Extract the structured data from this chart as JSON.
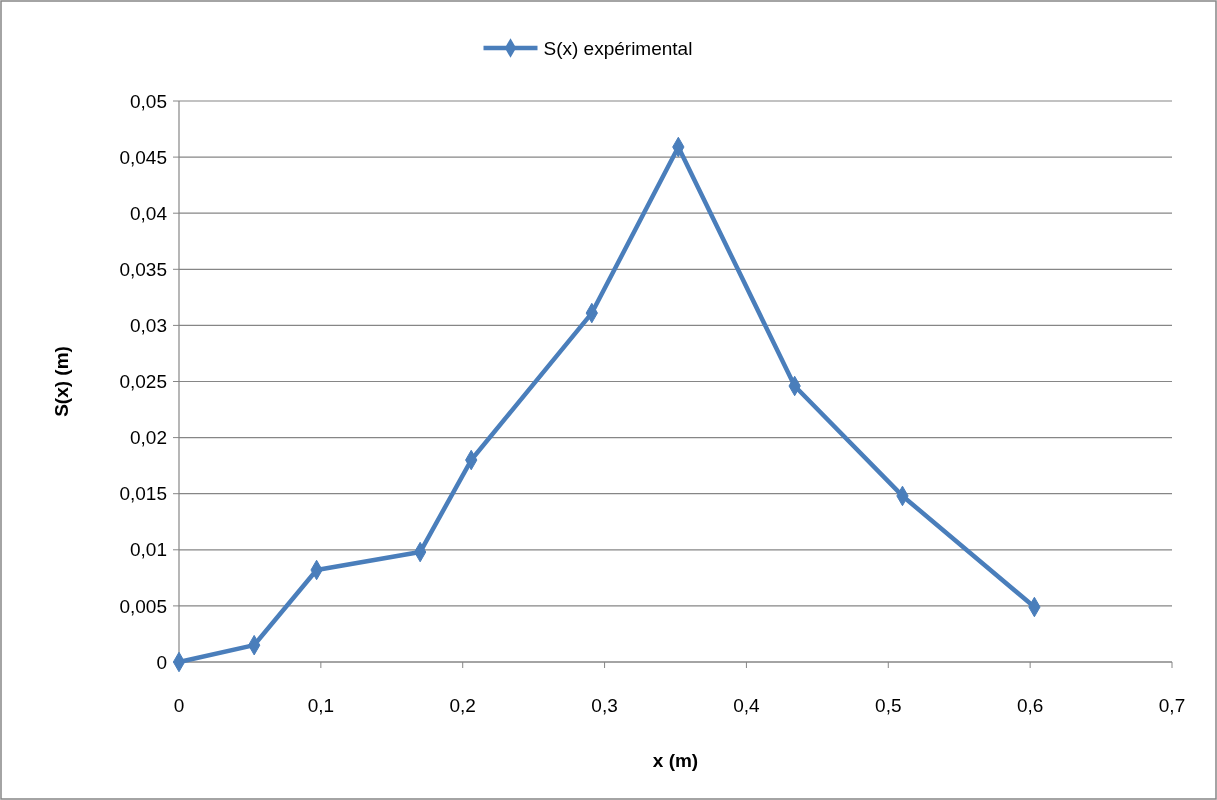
{
  "chart_data": {
    "type": "line",
    "xlabel": "x (m)",
    "ylabel": "S(x) (m)",
    "xlim": [
      0,
      0.7
    ],
    "ylim": [
      0,
      0.05
    ],
    "xticks": [
      0,
      {
        "value": 0.1,
        "label": "0,1"
      },
      {
        "value": 0.2,
        "label": "0,2"
      },
      {
        "value": 0.3,
        "label": "0,3"
      },
      {
        "value": 0.4,
        "label": "0,4"
      },
      {
        "value": 0.5,
        "label": "0,5"
      },
      {
        "value": 0.6,
        "label": "0,6"
      },
      {
        "value": 0.7,
        "label": "0,7"
      }
    ],
    "yticks": [
      0,
      {
        "value": 0.005,
        "label": "0,005"
      },
      {
        "value": 0.01,
        "label": "0,01"
      },
      {
        "value": 0.015,
        "label": "0,015"
      },
      {
        "value": 0.02,
        "label": "0,02"
      },
      {
        "value": 0.025,
        "label": "0,025"
      },
      {
        "value": 0.03,
        "label": "0,03"
      },
      {
        "value": 0.035,
        "label": "0,035"
      },
      {
        "value": 0.04,
        "label": "0,04"
      },
      {
        "value": 0.045,
        "label": "0,045"
      },
      {
        "value": 0.05,
        "label": "0,05"
      }
    ],
    "grid": "y",
    "legend": "top",
    "marker": "diamond",
    "line_style": "solid",
    "series": [
      {
        "name": "S(x) expérimental",
        "color": "#4a7ebb",
        "x": [
          0,
          0.053,
          0.097,
          0.17,
          0.206,
          0.291,
          0.352,
          0.434,
          0.51,
          0.603
        ],
        "values": [
          0,
          0.0015,
          0.0082,
          0.0098,
          0.018,
          0.0311,
          0.0459,
          0.0246,
          0.0148,
          0.0049
        ]
      }
    ]
  }
}
